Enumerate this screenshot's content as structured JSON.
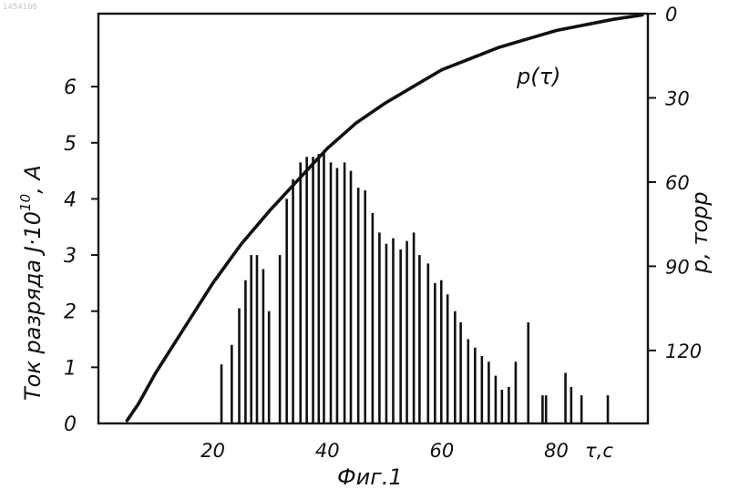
{
  "stamp_text": "1454166",
  "caption": "Фиг.1",
  "chart_data": {
    "type": "bar",
    "x_label": "τ,c",
    "y_left_label": "Ток разряда J·10",
    "y_left_label_exp": "10",
    "y_left_label_unit": ", A",
    "y_right_label": "p, торр",
    "curve_label": "p(τ)",
    "x_ticks": [
      "20",
      "40",
      "60",
      "80"
    ],
    "x_tick_values": [
      20,
      40,
      60,
      80
    ],
    "y_left_ticks": [
      "0",
      "1",
      "2",
      "3",
      "4",
      "5",
      "6"
    ],
    "y_left_tick_values": [
      0,
      1,
      2,
      3,
      4,
      5,
      6
    ],
    "y_right_ticks": [
      "0",
      "30",
      "60",
      "90",
      "120"
    ],
    "y_right_tick_values": [
      0,
      30,
      60,
      90,
      120
    ],
    "xlim": [
      0,
      96
    ],
    "ylim_left": [
      0,
      7.3
    ],
    "ylim_right": [
      0,
      146
    ],
    "bars": {
      "x": [
        21.5,
        23.3,
        24.6,
        25.7,
        26.7,
        27.7,
        28.8,
        29.8,
        31.7,
        32.9,
        34.0,
        35.3,
        36.4,
        37.5,
        38.5,
        39.4,
        40.6,
        41.7,
        43.0,
        44.1,
        45.4,
        46.6,
        47.9,
        49.1,
        50.3,
        51.5,
        52.8,
        53.9,
        55.1,
        56.1,
        57.6,
        58.8,
        59.9,
        61.0,
        62.3,
        63.3,
        64.6,
        65.8,
        67.0,
        68.2,
        69.4,
        70.5,
        71.7,
        72.9,
        75.1,
        77.6,
        78.2,
        81.6,
        82.6,
        84.4,
        89.0
      ],
      "values": [
        1.05,
        1.4,
        2.05,
        2.55,
        3.0,
        3.0,
        2.75,
        2.0,
        3.0,
        4.0,
        4.35,
        4.65,
        4.75,
        4.75,
        4.8,
        4.85,
        4.65,
        4.55,
        4.65,
        4.5,
        4.2,
        4.15,
        3.75,
        3.4,
        3.2,
        3.3,
        3.1,
        3.25,
        3.4,
        3.0,
        2.85,
        2.5,
        2.55,
        2.3,
        2.0,
        1.8,
        1.5,
        1.35,
        1.2,
        1.1,
        0.85,
        0.6,
        0.65,
        1.1,
        1.8,
        0.5,
        0.5,
        0.9,
        0.65,
        0.5,
        0.5
      ]
    },
    "curve": {
      "axis": "right",
      "x": [
        5,
        7,
        10,
        15,
        20,
        25,
        30,
        35,
        40,
        45,
        50,
        55,
        60,
        65,
        70,
        75,
        80,
        85,
        90,
        95
      ],
      "p": [
        145,
        139,
        128,
        112,
        96,
        82,
        70,
        59,
        48,
        39,
        32,
        26,
        20,
        16,
        12,
        9,
        6,
        4,
        2,
        0.5
      ]
    }
  }
}
